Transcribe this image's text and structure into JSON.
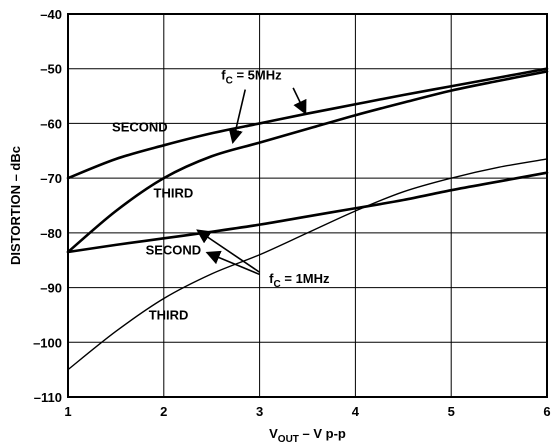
{
  "chart_data": {
    "type": "line",
    "xlabel": {
      "main": "V",
      "sub": "OUT",
      "rest": " – V p-p"
    },
    "ylabel": "DISTORTION – dBc",
    "xlim": [
      1,
      6
    ],
    "ylim": [
      -110,
      -40
    ],
    "x_ticks": [
      "1",
      "2",
      "3",
      "4",
      "5",
      "6"
    ],
    "y_ticks": [
      "–40",
      "–50",
      "–60",
      "–70",
      "–80",
      "–90",
      "–100",
      "–110"
    ],
    "grid": true,
    "series": [
      {
        "name": "SECOND (fC = 5MHz)",
        "weight": "heavy",
        "x": [
          1,
          1.5,
          2,
          2.5,
          3,
          3.5,
          4,
          4.5,
          5,
          5.5,
          6
        ],
        "y": [
          -70,
          -66.5,
          -64,
          -61.8,
          -60,
          -58.2,
          -56.5,
          -54.8,
          -53.2,
          -51.6,
          -50
        ]
      },
      {
        "name": "THIRD (fC = 5MHz)",
        "weight": "heavy",
        "x": [
          1,
          1.5,
          2,
          2.5,
          3,
          3.5,
          4,
          4.5,
          5,
          5.5,
          6
        ],
        "y": [
          -83.5,
          -76,
          -70,
          -66,
          -63.5,
          -61,
          -58.5,
          -56.2,
          -54,
          -52.2,
          -50.5
        ]
      },
      {
        "name": "SECOND (fC = 1MHz)",
        "weight": "heavy",
        "x": [
          1,
          1.5,
          2,
          2.5,
          3,
          3.5,
          4,
          4.5,
          5,
          5.5,
          6
        ],
        "y": [
          -83.5,
          -82.2,
          -81,
          -79.8,
          -78.5,
          -77,
          -75.5,
          -74,
          -72.2,
          -70.6,
          -69
        ]
      },
      {
        "name": "THIRD (fC = 1MHz)",
        "weight": "light",
        "x": [
          1,
          1.5,
          2,
          2.5,
          3,
          3.5,
          4,
          4.5,
          5,
          5.5,
          6
        ],
        "y": [
          -105,
          -98,
          -92,
          -87.5,
          -84,
          -80,
          -76,
          -72.5,
          -70,
          -68,
          -66.5
        ]
      }
    ],
    "annotations": {
      "second_upper": {
        "text": "SECOND",
        "x": 1.75,
        "y": -61.5
      },
      "third_upper": {
        "text": "THIRD",
        "x": 2.1,
        "y": -73.5
      },
      "second_lower": {
        "text": "SECOND",
        "x": 2.1,
        "y": -84
      },
      "third_lower": {
        "text": "THIRD",
        "x": 2.05,
        "y": -95.8
      },
      "fc5": {
        "label": "f",
        "sub": "C",
        "rest": " = 5MHz",
        "x": 2.6,
        "y": -52
      },
      "fc1": {
        "label": "f",
        "sub": "C",
        "rest": " = 1MHz",
        "x": 3.1,
        "y": -89.2
      }
    },
    "arrows": [
      {
        "from": [
          2.85,
          -53.8
        ],
        "to": [
          2.72,
          -63.5
        ]
      },
      {
        "from": [
          3.35,
          -53.5
        ],
        "to": [
          3.48,
          -58.2
        ]
      },
      {
        "from": [
          3.0,
          -87.2
        ],
        "to": [
          2.35,
          -79.5
        ]
      },
      {
        "from": [
          3.0,
          -87.6
        ],
        "to": [
          2.45,
          -83.6
        ]
      }
    ]
  }
}
